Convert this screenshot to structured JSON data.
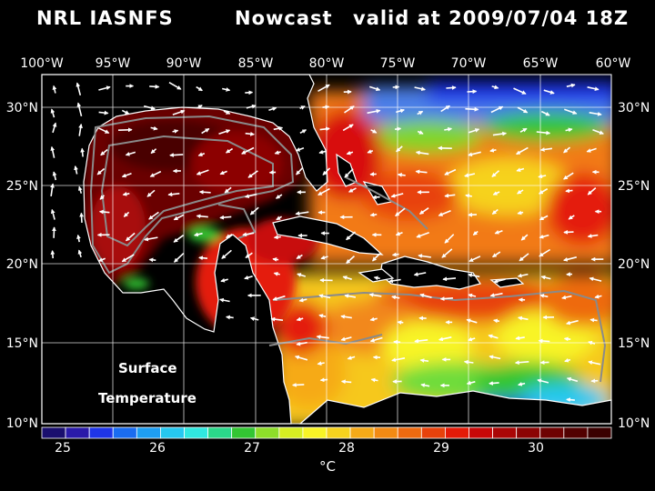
{
  "header": {
    "model": "NRL IASNFS",
    "product": "Nowcast",
    "valid": "valid at 2009/07/04 18Z"
  },
  "map": {
    "longitude_labels": [
      "100°W",
      "95°W",
      "90°W",
      "85°W",
      "80°W",
      "75°W",
      "70°W",
      "65°W",
      "60°W"
    ],
    "latitude_labels": [
      "30°N",
      "25°N",
      "20°N",
      "15°N",
      "10°N"
    ],
    "field_label_line1": "Surface",
    "field_label_line2": "Temperature",
    "vector_field": "surface-current-arrows"
  },
  "colorbar": {
    "tick_labels": [
      "25",
      "26",
      "27",
      "28",
      "29",
      "30"
    ],
    "unit": "°C",
    "colors": [
      "#1a0f6e",
      "#2a1aa8",
      "#1f35e8",
      "#1a6cf0",
      "#1e9ef2",
      "#26c8f0",
      "#30e8e0",
      "#2bd88a",
      "#33c633",
      "#8ede2a",
      "#d6ee22",
      "#f8f426",
      "#f6d21e",
      "#f6aa18",
      "#f28a14",
      "#ee6a10",
      "#e8420c",
      "#e41a08",
      "#c80808",
      "#aa0606",
      "#8c0404",
      "#6e0202",
      "#520101",
      "#3a0000"
    ]
  }
}
